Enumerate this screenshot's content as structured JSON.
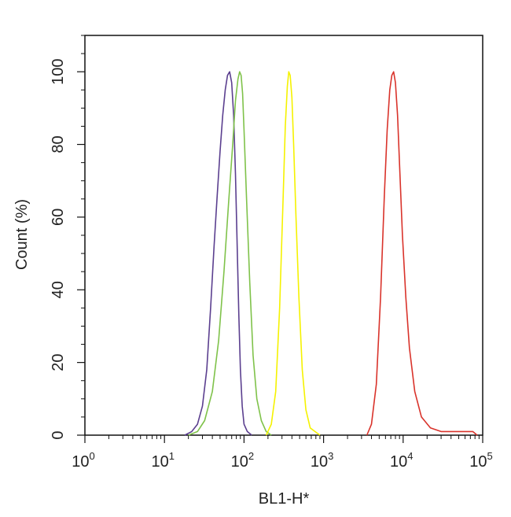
{
  "chart_data": {
    "type": "line",
    "title": "",
    "xlabel": "BL1-H*",
    "ylabel": "Count  (%)",
    "xscale": "log",
    "xlim": [
      1,
      100000
    ],
    "ylim": [
      0,
      110
    ],
    "grid": false,
    "x_ticks": [
      {
        "base": "10",
        "exp": "0"
      },
      {
        "base": "10",
        "exp": "1"
      },
      {
        "base": "10",
        "exp": "2"
      },
      {
        "base": "10",
        "exp": "3"
      },
      {
        "base": "10",
        "exp": "4"
      },
      {
        "base": "10",
        "exp": "5"
      }
    ],
    "x_tick_values": [
      1,
      10,
      100,
      1000,
      10000,
      100000
    ],
    "y_ticks": [
      "0",
      "20",
      "40",
      "60",
      "80",
      "100"
    ],
    "y_tick_values": [
      0,
      20,
      40,
      60,
      80,
      100
    ],
    "series": [
      {
        "color": "#5b3f8f",
        "x": [
          18,
          22,
          26,
          30,
          34,
          38,
          42,
          46,
          50,
          54,
          58,
          62,
          66,
          70,
          74,
          78,
          82,
          86,
          90,
          95,
          100,
          110,
          125
        ],
        "y": [
          0,
          1,
          3,
          8,
          18,
          35,
          52,
          66,
          78,
          88,
          95,
          99,
          100,
          97,
          88,
          72,
          52,
          33,
          18,
          8,
          3,
          1,
          0
        ]
      },
      {
        "color": "#7fc24a",
        "x": [
          20,
          26,
          32,
          40,
          48,
          56,
          64,
          72,
          78,
          84,
          88,
          92,
          96,
          100,
          108,
          118,
          130,
          145,
          165,
          190,
          220
        ],
        "y": [
          0,
          1,
          4,
          12,
          26,
          45,
          64,
          80,
          92,
          98,
          100,
          99,
          94,
          84,
          64,
          42,
          22,
          10,
          4,
          1,
          0
        ]
      },
      {
        "color": "#f5f200",
        "x": [
          190,
          220,
          250,
          280,
          310,
          330,
          350,
          365,
          380,
          400,
          420,
          450,
          490,
          540,
          600,
          680,
          780,
          900
        ],
        "y": [
          0,
          3,
          12,
          35,
          65,
          85,
          96,
          100,
          99,
          93,
          80,
          60,
          38,
          18,
          7,
          2,
          1,
          0
        ]
      },
      {
        "color": "#d9332b",
        "x": [
          3500,
          4000,
          4600,
          5200,
          5800,
          6300,
          6800,
          7200,
          7600,
          8000,
          8500,
          9100,
          9800,
          10800,
          12000,
          14000,
          17000,
          22000,
          30000,
          45000,
          60000,
          75000,
          85000
        ],
        "y": [
          0,
          3,
          14,
          38,
          66,
          84,
          95,
          99,
          100,
          97,
          88,
          72,
          55,
          38,
          24,
          12,
          5,
          2,
          1,
          1,
          1,
          1,
          0
        ]
      }
    ]
  }
}
